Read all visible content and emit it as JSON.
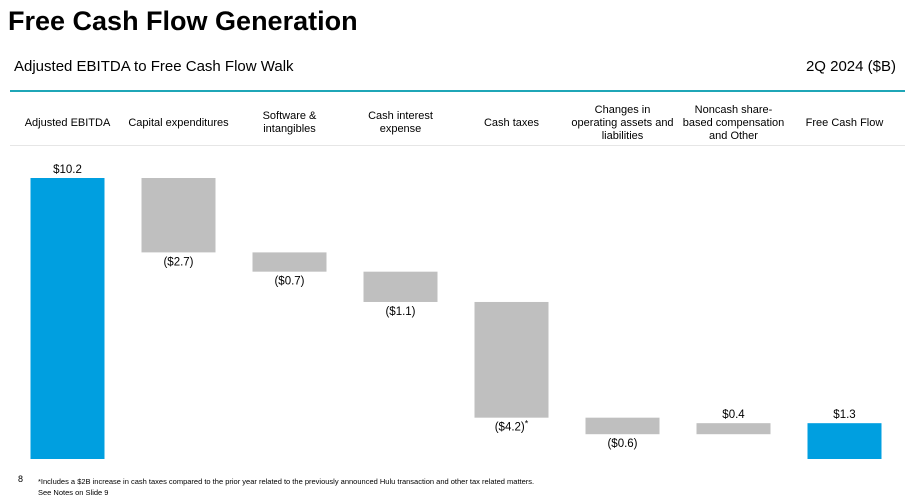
{
  "chart_data": {
    "type": "waterfall",
    "title": "Free Cash Flow Generation",
    "subtitle": "Adjusted EBITDA to Free Cash Flow Walk",
    "period_label": "2Q 2024 ($B)",
    "categories": [
      "Adjusted EBITDA",
      "Capital expenditures",
      "Software & intangibles",
      "Cash interest expense",
      "Cash taxes",
      "Changes in operating assets and liabilities",
      "Noncash share-based compensation and Other",
      "Free Cash Flow"
    ],
    "values": [
      10.2,
      -2.7,
      -0.7,
      -1.1,
      -4.2,
      -0.6,
      0.4,
      1.3
    ],
    "value_labels": [
      "$10.2",
      "($2.7)",
      "($0.7)",
      "($1.1)",
      "($4.2)",
      "($0.6)",
      "$0.4",
      "$1.3"
    ],
    "value_label_markers": [
      null,
      null,
      null,
      null,
      "*",
      null,
      null,
      null
    ],
    "measure": [
      "absolute",
      "relative",
      "relative",
      "relative",
      "relative",
      "relative",
      "relative",
      "total"
    ],
    "total_color": "#009fe0",
    "change_color": "#bfbfbf",
    "page_number": "8",
    "footnotes": [
      "*Includes a $2B increase in cash taxes compared to the prior year related to the previously announced Hulu transaction and other tax related matters.",
      "See Notes on Slide 9"
    ]
  }
}
